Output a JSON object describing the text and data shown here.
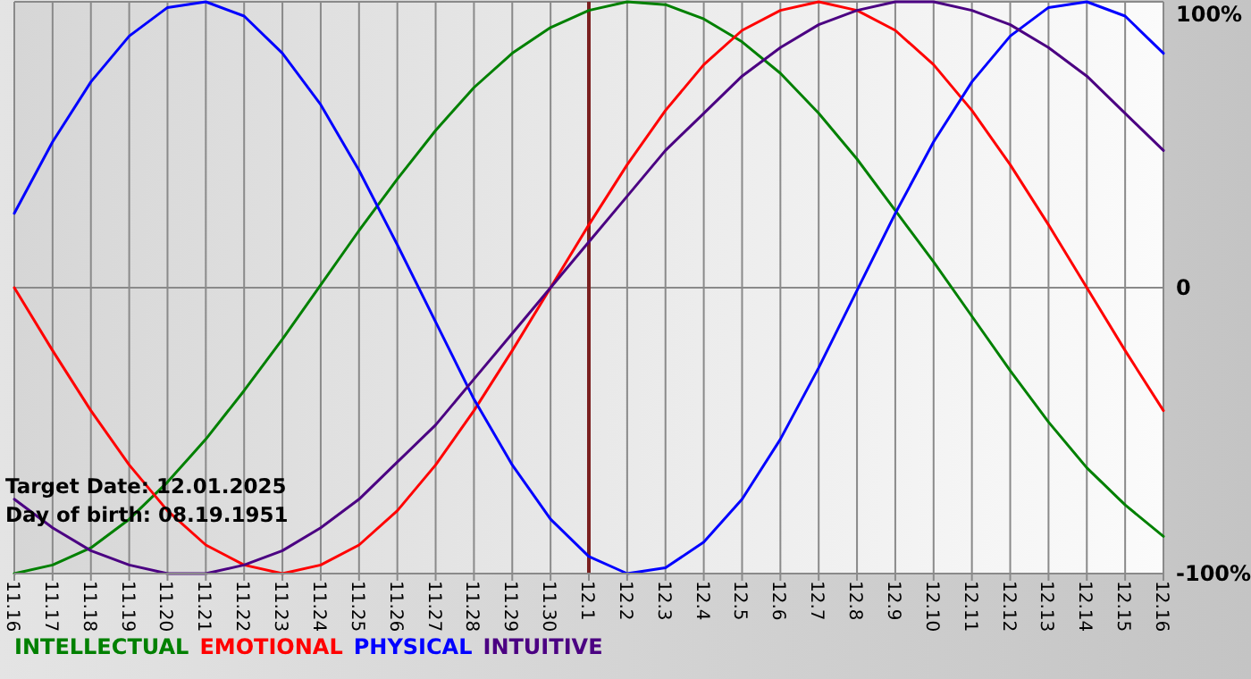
{
  "chart_data": {
    "type": "line",
    "categories": [
      "11.16",
      "11.17",
      "11.18",
      "11.19",
      "11.20",
      "11.21",
      "11.22",
      "11.23",
      "11.24",
      "11.25",
      "11.26",
      "11.27",
      "11.28",
      "11.29",
      "11.30",
      "12.1",
      "12.2",
      "12.3",
      "12.4",
      "12.5",
      "12.6",
      "12.7",
      "12.8",
      "12.9",
      "12.10",
      "12.11",
      "12.12",
      "12.13",
      "12.14",
      "12.15",
      "12.16"
    ],
    "series": [
      {
        "name": "INTELLECTUAL",
        "color": "#008000",
        "values": [
          -100,
          -97,
          -91,
          -81,
          -68,
          -53,
          -36,
          -18,
          1,
          20,
          38,
          55,
          70,
          82,
          91,
          97,
          100,
          99,
          94,
          86,
          75,
          61,
          45,
          27,
          9,
          -10,
          -29,
          -47,
          -63,
          -76,
          -87
        ]
      },
      {
        "name": "EMOTIONAL",
        "color": "#ff0000",
        "values": [
          0,
          -22,
          -43,
          -62,
          -78,
          -90,
          -97,
          -100,
          -97,
          -90,
          -78,
          -62,
          -43,
          -22,
          0,
          22,
          43,
          62,
          78,
          90,
          97,
          100,
          97,
          90,
          78,
          62,
          43,
          22,
          0,
          -22,
          -43
        ]
      },
      {
        "name": "PHYSICAL",
        "color": "#0000ff",
        "values": [
          26,
          51,
          72,
          88,
          98,
          100,
          95,
          82,
          64,
          41,
          15,
          -12,
          -39,
          -62,
          -81,
          -94,
          -100,
          -98,
          -89,
          -74,
          -53,
          -28,
          -1,
          26,
          51,
          72,
          88,
          98,
          100,
          95,
          82
        ]
      },
      {
        "name": "INTUITIVE",
        "color": "#4b0082",
        "values": [
          -74,
          -84,
          -92,
          -97,
          -100,
          -100,
          -97,
          -92,
          -84,
          -74,
          -61,
          -48,
          -32,
          -16,
          0,
          16,
          32,
          48,
          61,
          74,
          84,
          92,
          97,
          100,
          100,
          97,
          92,
          84,
          74,
          61,
          48
        ]
      }
    ],
    "ylim": [
      -100,
      100
    ],
    "yticks": [
      {
        "value": 100,
        "label": "100%"
      },
      0,
      {
        "value": -100,
        "label": "-100%"
      }
    ],
    "grid": true,
    "legend": "bottom",
    "marker": "none",
    "line_style": "solid",
    "ref_lines": [
      {
        "axis": "x",
        "value": "12.1",
        "color": "#7b2020"
      }
    ],
    "annotations": [
      "Target Date: 12.01.2025",
      "Day of birth: 08.19.1951"
    ]
  }
}
